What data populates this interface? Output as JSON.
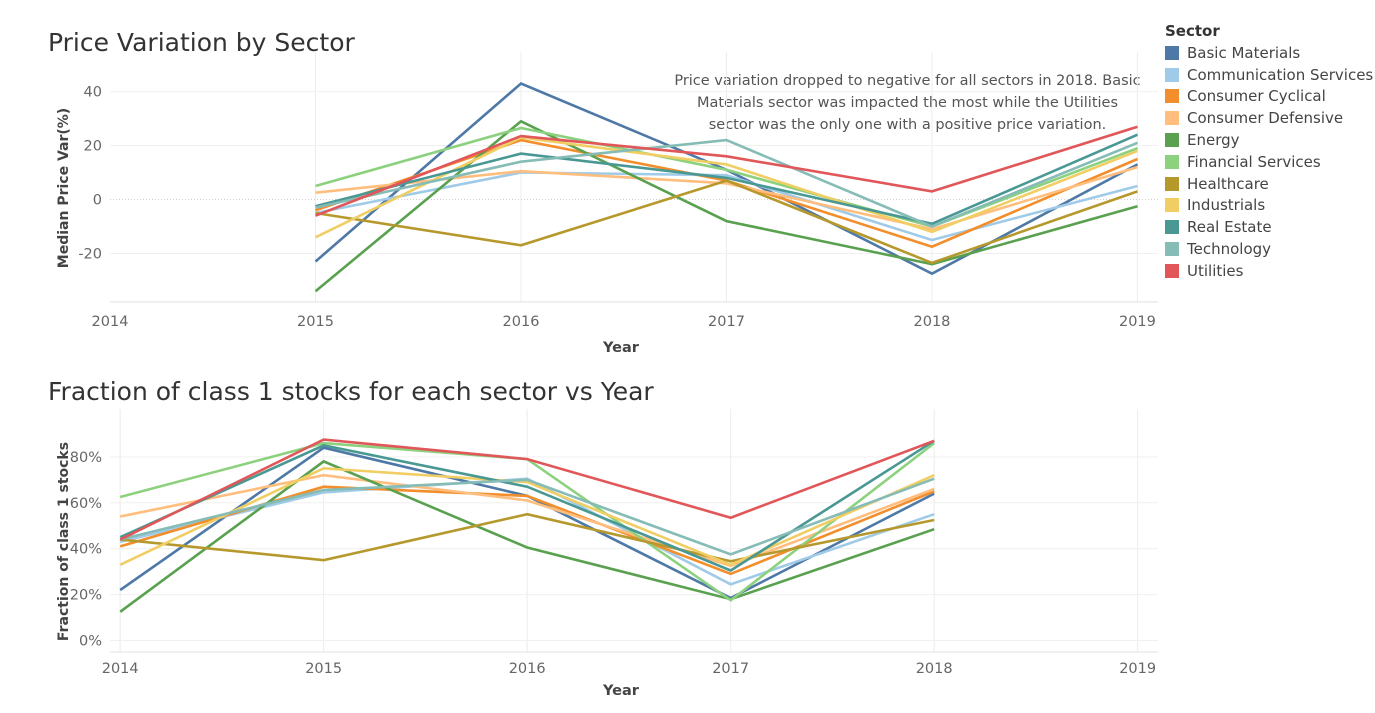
{
  "colors": {
    "Basic Materials": "#4e79a7",
    "Communication Services": "#a0cbe8",
    "Consumer Cyclical": "#f28e2b",
    "Consumer Defensive": "#ffbe7d",
    "Energy": "#59a14f",
    "Financial Services": "#8cd17d",
    "Healthcare": "#b6992d",
    "Industrials": "#f1ce63",
    "Real Estate": "#499894",
    "Technology": "#86bcb6",
    "Utilities": "#e15759"
  },
  "legend": {
    "title": "Sector",
    "items": [
      "Basic Materials",
      "Communication Services",
      "Consumer Cyclical",
      "Consumer Defensive",
      "Energy",
      "Financial Services",
      "Healthcare",
      "Industrials",
      "Real Estate",
      "Technology",
      "Utilities"
    ]
  },
  "annotation": [
    "Price variation dropped to negative for all sectors in 2018. Basic",
    "Materials sector was impacted the most while the Utilities",
    "sector was the only one with a positive price variation."
  ],
  "chart_data": [
    {
      "type": "line",
      "title": "Price Variation by Sector",
      "xlabel": "Year",
      "ylabel": "Median Price Var(%)",
      "x": [
        2015,
        2016,
        2017,
        2018,
        2019
      ],
      "xticks": [
        "2014",
        "2015",
        "2016",
        "2017",
        "2018",
        "2019"
      ],
      "yticks": [
        40,
        20,
        0,
        -20
      ],
      "ytick_labels": [
        "40",
        "20",
        "0",
        "-20"
      ],
      "xlim": [
        2014,
        2019.1
      ],
      "ylim": [
        -38,
        48
      ],
      "series": [
        {
          "name": "Basic Materials",
          "values": [
            -23,
            43,
            11,
            -27.5,
            13
          ]
        },
        {
          "name": "Communication Services",
          "values": [
            -5,
            10,
            9,
            -15,
            5
          ]
        },
        {
          "name": "Consumer Cyclical",
          "values": [
            -4,
            22,
            7,
            -17.5,
            15
          ]
        },
        {
          "name": "Consumer Defensive",
          "values": [
            2.5,
            10.5,
            6,
            -11,
            12
          ]
        },
        {
          "name": "Energy",
          "values": [
            -34,
            29,
            -8,
            -24,
            -2.5
          ]
        },
        {
          "name": "Financial Services",
          "values": [
            5,
            26.5,
            11,
            -10,
            19
          ]
        },
        {
          "name": "Healthcare",
          "values": [
            -5,
            -17,
            7,
            -23.5,
            3
          ]
        },
        {
          "name": "Industrials",
          "values": [
            -14,
            23,
            13,
            -12,
            18
          ]
        },
        {
          "name": "Real Estate",
          "values": [
            -2.5,
            17,
            8,
            -9,
            24
          ]
        },
        {
          "name": "Technology",
          "values": [
            -3,
            14,
            22,
            -10,
            21
          ]
        },
        {
          "name": "Utilities",
          "values": [
            -6,
            23.5,
            16,
            3,
            27
          ]
        }
      ]
    },
    {
      "type": "line",
      "title": "Fraction of class 1 stocks for each sector vs Year",
      "xlabel": "Year",
      "ylabel": "Fraction of class 1 stocks",
      "x": [
        2014,
        2015,
        2016,
        2017,
        2018
      ],
      "xticks": [
        "2014",
        "2015",
        "2016",
        "2017",
        "2018",
        "2019"
      ],
      "yticks": [
        80,
        60,
        40,
        20,
        0
      ],
      "ytick_labels": [
        "80%",
        "60%",
        "40%",
        "20%",
        "0%"
      ],
      "xlim": [
        2013.95,
        2019.1
      ],
      "ylim": [
        -5,
        93
      ],
      "series": [
        {
          "name": "Basic Materials",
          "values": [
            22,
            84,
            63,
            18.5,
            64
          ]
        },
        {
          "name": "Communication Services",
          "values": [
            43,
            64.5,
            70.5,
            24.5,
            55
          ]
        },
        {
          "name": "Consumer Cyclical",
          "values": [
            41,
            67,
            63,
            29,
            65
          ]
        },
        {
          "name": "Consumer Defensive",
          "values": [
            54,
            72,
            61,
            32.5,
            66
          ]
        },
        {
          "name": "Energy",
          "values": [
            12.5,
            78,
            40.5,
            18,
            48.5
          ]
        },
        {
          "name": "Financial Services",
          "values": [
            62.5,
            86,
            79,
            17.5,
            86
          ]
        },
        {
          "name": "Healthcare",
          "values": [
            44,
            35,
            55,
            34.5,
            52.5
          ]
        },
        {
          "name": "Industrials",
          "values": [
            33,
            75,
            69,
            33,
            72
          ]
        },
        {
          "name": "Real Estate",
          "values": [
            45,
            85,
            67,
            30.5,
            87
          ]
        },
        {
          "name": "Technology",
          "values": [
            44,
            65.5,
            70,
            37.5,
            70.5
          ]
        },
        {
          "name": "Utilities",
          "values": [
            44,
            87.5,
            79,
            53.5,
            87
          ]
        }
      ]
    }
  ]
}
